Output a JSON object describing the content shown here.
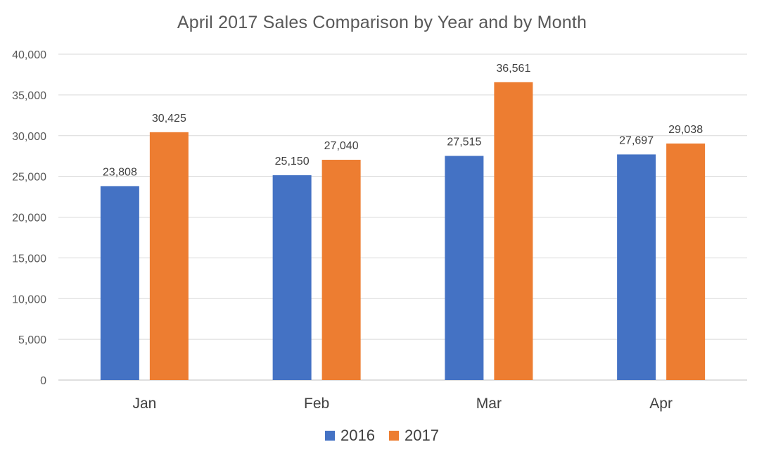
{
  "chart_data": {
    "type": "bar",
    "title": "April 2017 Sales Comparison by Year and by Month",
    "categories": [
      "Jan",
      "Feb",
      "Mar",
      "Apr"
    ],
    "series": [
      {
        "name": "2016",
        "color": "#4472C4",
        "values": [
          23808,
          25150,
          27515,
          27697
        ]
      },
      {
        "name": "2017",
        "color": "#ED7D31",
        "values": [
          30425,
          27040,
          36561,
          29038
        ]
      }
    ],
    "ylim": [
      0,
      40000
    ],
    "yticks": [
      0,
      5000,
      10000,
      15000,
      20000,
      25000,
      30000,
      35000,
      40000
    ],
    "ytick_labels": [
      "0",
      "5,000",
      "10,000",
      "15,000",
      "20,000",
      "25,000",
      "30,000",
      "35,000",
      "40,000"
    ],
    "data_labels": [
      [
        "23,808",
        "25,150",
        "27,515",
        "27,697"
      ],
      [
        "30,425",
        "27,040",
        "36,561",
        "29,038"
      ]
    ],
    "grid": true,
    "legend_position": "bottom",
    "xlabel": "",
    "ylabel": ""
  }
}
